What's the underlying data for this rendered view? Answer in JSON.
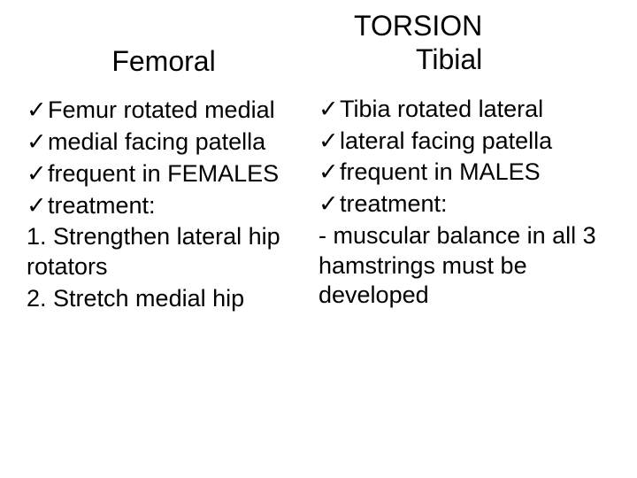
{
  "main_title": "TORSION",
  "left": {
    "heading": "Femoral",
    "items": [
      {
        "check": true,
        "text": "Femur rotated medial"
      },
      {
        "check": true,
        "text": "medial facing patella"
      },
      {
        "check": true,
        "text": "frequent in FEMALES"
      },
      {
        "check": true,
        "text": "treatment:"
      },
      {
        "check": false,
        "text": "1. Strengthen lateral hip rotators"
      },
      {
        "check": false,
        "text": "2. Stretch medial hip"
      }
    ]
  },
  "right": {
    "heading": "Tibial",
    "items": [
      {
        "check": true,
        "text": "Tibia rotated lateral"
      },
      {
        "check": true,
        "text": "lateral facing patella"
      },
      {
        "check": true,
        "text": "frequent in MALES"
      },
      {
        "check": true,
        "text": "treatment:"
      },
      {
        "check": false,
        "text": " - muscular balance in all 3 hamstrings must be developed"
      }
    ]
  },
  "checkmark": "✓",
  "colors": {
    "background": "#ffffff",
    "text": "#000000"
  },
  "fontsize": {
    "heading": 32,
    "body": 27
  }
}
